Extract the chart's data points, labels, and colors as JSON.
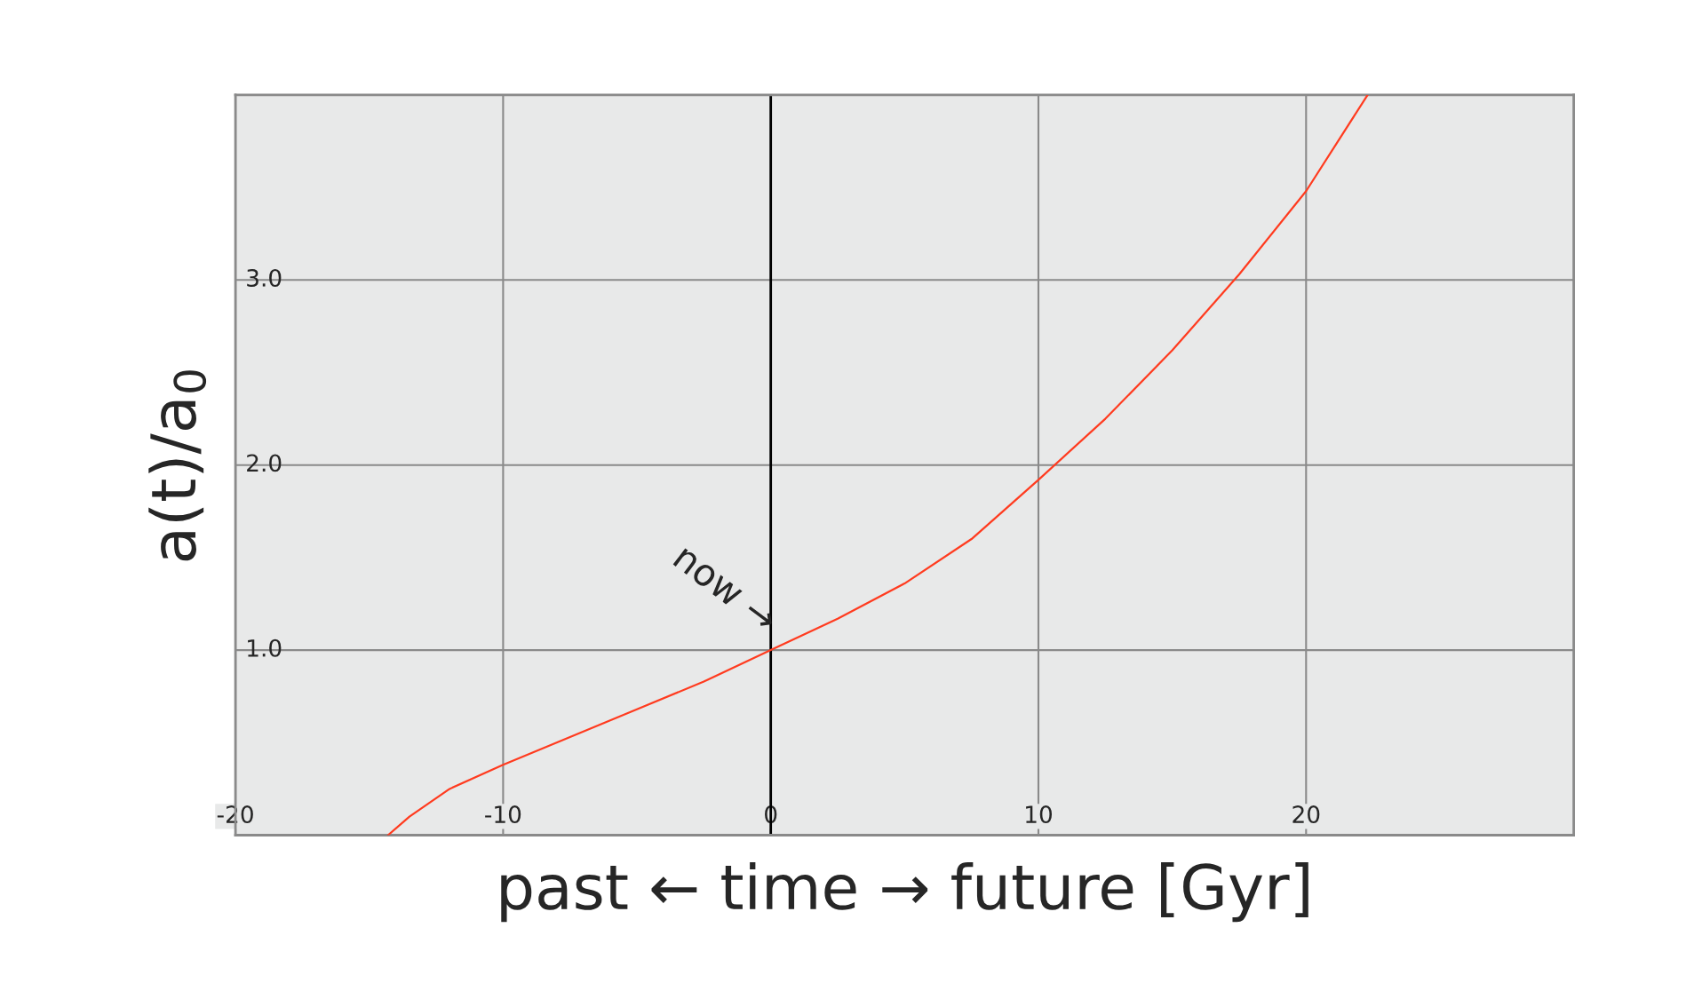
{
  "chart_data": {
    "type": "line",
    "xlabel": "past ← time → future [Gyr]",
    "ylabel": "a(t)/a$_{0}$",
    "x": [
      -14.3,
      -13.5,
      -12,
      -10,
      -7.5,
      -5,
      -2.5,
      0,
      2.5,
      5,
      7.5,
      10,
      12.5,
      15,
      17.5,
      20,
      22.3
    ],
    "series": [
      {
        "color": "#ff3b1f",
        "values": [
          0,
          0.1,
          0.25,
          0.38,
          0.53,
          0.68,
          0.83,
          1.0,
          1.17,
          1.36,
          1.6,
          1.92,
          2.25,
          2.62,
          3.03,
          3.48,
          4.0
        ]
      }
    ],
    "xlim": [
      -20,
      30
    ],
    "ylim": [
      0,
      4
    ],
    "xticks": [
      -20,
      -10,
      0,
      10,
      20
    ],
    "yticks": [
      {
        "value": 1,
        "label": "1.0"
      },
      {
        "value": 2,
        "label": "2.0"
      },
      {
        "value": 3,
        "label": "3.0"
      }
    ],
    "grid": true,
    "legend": false,
    "marker": "none",
    "line_style": "solid",
    "ref_lines": [
      {
        "axis": "x",
        "value": 0,
        "color": "#000000"
      }
    ],
    "annotations": [
      {
        "text": "now →",
        "x": 0,
        "y": 1
      }
    ]
  }
}
